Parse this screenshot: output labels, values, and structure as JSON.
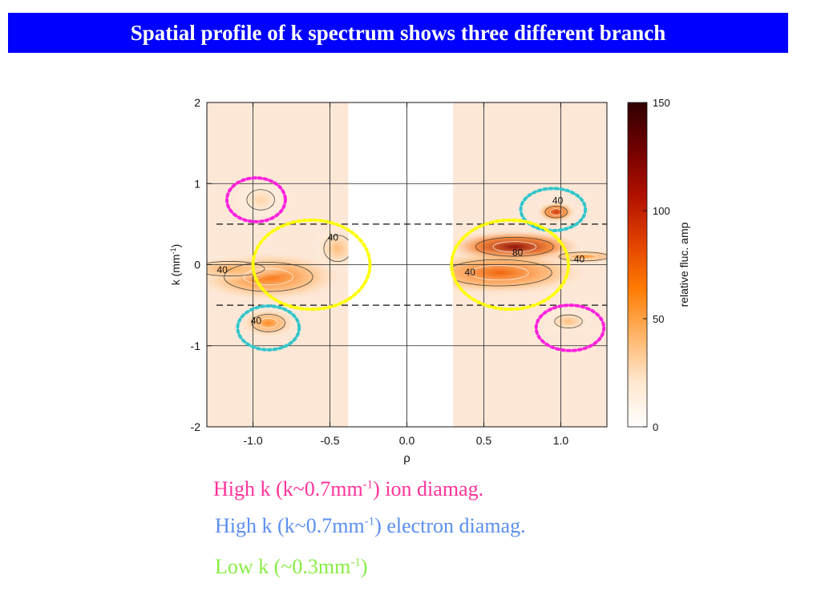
{
  "slide": {
    "title": "Spatial profile of k spectrum shows three different branch"
  },
  "chart_data": {
    "type": "heatmap",
    "title": "",
    "xlabel": "ρ",
    "ylabel": "k (mm⁻¹)",
    "ylabel_parts": {
      "main": "k (mm",
      "sup": "-1",
      "end": ")"
    },
    "xlim": [
      -1.3,
      1.3
    ],
    "ylim": [
      -2,
      2
    ],
    "x_ticks": [
      -1.0,
      -0.5,
      0.0,
      0.5,
      1.0
    ],
    "x_tick_labels": [
      "-1.0",
      "-0.5",
      "0.0",
      "0.5",
      "1.0"
    ],
    "y_ticks": [
      -2,
      -1,
      0,
      1,
      2
    ],
    "y_tick_labels": [
      "-2",
      "-1",
      "0",
      "1",
      "2"
    ],
    "grid": true,
    "no_data_rho_ranges": [
      [
        -0.38,
        0.3
      ]
    ],
    "dashed_k_lines": [
      0.5,
      -0.5
    ],
    "colorbar": {
      "label": "relative fluc. amp",
      "range": [
        0,
        150
      ],
      "ticks": [
        0,
        50,
        100,
        150
      ],
      "tick_labels": [
        "0",
        "50",
        "100",
        "150"
      ],
      "colors": [
        "#ffffff",
        "#ffe6cc",
        "#ffb366",
        "#ff7a00",
        "#e04000",
        "#b01000",
        "#700000",
        "#300000"
      ]
    },
    "features": [
      {
        "rho": -0.9,
        "k": -0.15,
        "level": 70,
        "sx": 0.32,
        "sk": 0.2
      },
      {
        "rho": -1.15,
        "k": -0.05,
        "level": 45,
        "sx": 0.25,
        "sk": 0.1
      },
      {
        "rho": -0.45,
        "k": 0.2,
        "level": 40,
        "sx": 0.1,
        "sk": 0.18
      },
      {
        "rho": -0.95,
        "k": 0.8,
        "level": 30,
        "sx": 0.1,
        "sk": 0.14
      },
      {
        "rho": -0.9,
        "k": -0.72,
        "level": 60,
        "sx": 0.12,
        "sk": 0.12
      },
      {
        "rho": 0.7,
        "k": 0.22,
        "level": 120,
        "sx": 0.28,
        "sk": 0.13
      },
      {
        "rho": 0.6,
        "k": -0.1,
        "level": 75,
        "sx": 0.38,
        "sk": 0.18
      },
      {
        "rho": 1.15,
        "k": 0.1,
        "level": 55,
        "sx": 0.18,
        "sk": 0.06
      },
      {
        "rho": 0.97,
        "k": 0.65,
        "level": 95,
        "sx": 0.08,
        "sk": 0.08
      },
      {
        "rho": 1.05,
        "k": -0.7,
        "level": 40,
        "sx": 0.1,
        "sk": 0.09
      }
    ],
    "contour_labels": [
      {
        "rho": -1.2,
        "k": -0.07,
        "text": "40"
      },
      {
        "rho": -0.48,
        "k": 0.33,
        "text": "40"
      },
      {
        "rho": -0.98,
        "k": -0.7,
        "text": "40"
      },
      {
        "rho": 0.72,
        "k": 0.14,
        "text": "80"
      },
      {
        "rho": 1.12,
        "k": 0.06,
        "text": "40"
      },
      {
        "rho": 0.41,
        "k": -0.1,
        "text": "40"
      },
      {
        "rho": 0.98,
        "k": 0.78,
        "text": "40"
      }
    ],
    "ellipses": [
      {
        "group": "ion",
        "color": "#ff22dd",
        "rho": -0.98,
        "k": 0.8,
        "rrho": 0.19,
        "rk": 0.27
      },
      {
        "group": "ion",
        "color": "#ff22dd",
        "rho": 1.06,
        "k": -0.78,
        "rrho": 0.22,
        "rk": 0.28
      },
      {
        "group": "electron",
        "color": "#33c6cc",
        "rho": -0.9,
        "k": -0.78,
        "rrho": 0.2,
        "rk": 0.27
      },
      {
        "group": "electron",
        "color": "#33c6cc",
        "rho": 0.95,
        "k": 0.68,
        "rrho": 0.21,
        "rk": 0.26
      },
      {
        "group": "low",
        "color": "#ffff00",
        "rho": -0.62,
        "k": 0.0,
        "rrho": 0.38,
        "rk": 0.55
      },
      {
        "group": "low",
        "color": "#ffff00",
        "rho": 0.67,
        "k": 0.0,
        "rrho": 0.38,
        "rk": 0.55
      }
    ]
  },
  "captions": {
    "ion": {
      "pre": "High k (k~0.7mm",
      "sup": "-1",
      "post": ") ion diamag."
    },
    "electron": {
      "pre": "High k (k~0.7mm",
      "sup": "-1",
      "post": ") electron diamag."
    },
    "low": {
      "pre": "Low k (~0.3mm",
      "sup": "-1",
      "post": ")"
    }
  }
}
